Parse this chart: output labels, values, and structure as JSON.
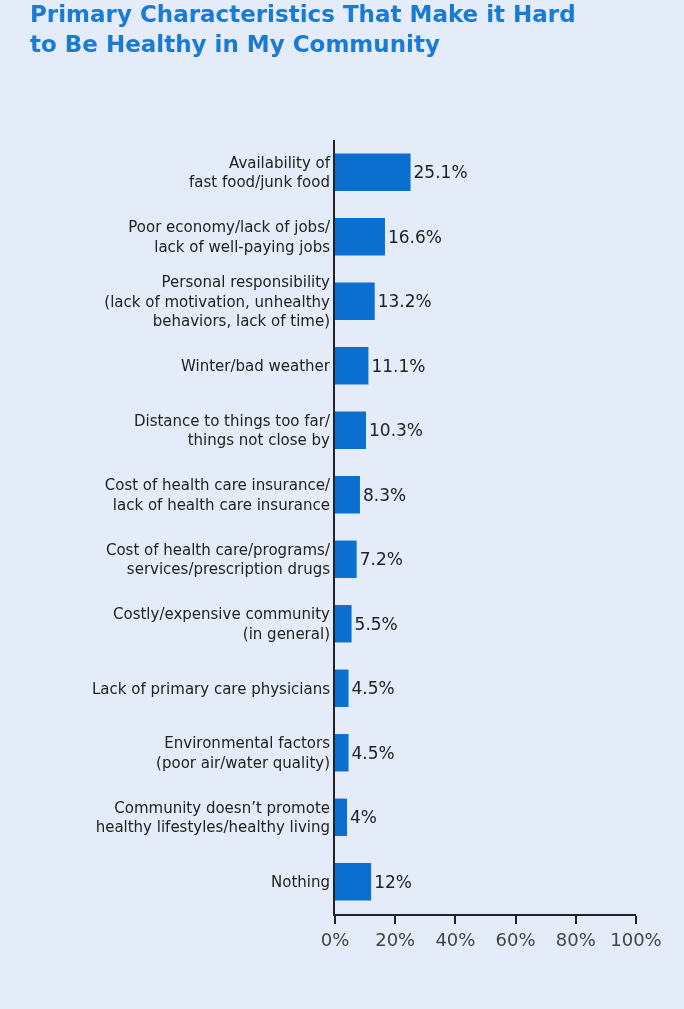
{
  "chart_data": {
    "type": "bar",
    "orientation": "horizontal",
    "title": "Primary Characteristics That Make it Hard\nto Be Healthy in My Community",
    "categories": [
      "Availability of\nfast food/junk food",
      "Poor economy/lack of jobs/\nlack of well-paying jobs",
      "Personal responsibility\n(lack of motivation, unhealthy\nbehaviors, lack of time)",
      "Winter/bad weather",
      "Distance to things too far/\nthings not close by",
      "Cost of health care insurance/\nlack of health care insurance",
      "Cost of health care/programs/\nservices/prescription drugs",
      "Costly/expensive community\n(in general)",
      "Lack of primary care physicians",
      "Environmental factors\n(poor air/water quality)",
      "Community doesn’t promote\nhealthy lifestyles/healthy living",
      "Nothing"
    ],
    "values": [
      25.1,
      16.6,
      13.2,
      11.1,
      10.3,
      8.3,
      7.2,
      5.5,
      4.5,
      4.5,
      4,
      12
    ],
    "value_labels": [
      "25.1%",
      "16.6%",
      "13.2%",
      "11.1%",
      "10.3%",
      "8.3%",
      "7.2%",
      "5.5%",
      "4.5%",
      "4.5%",
      "4%",
      "12%"
    ],
    "color": "#0b6fd0",
    "xlim": [
      0,
      100
    ],
    "xticks": [
      {
        "value": 0,
        "label": "0%"
      },
      {
        "value": 20,
        "label": "20%"
      },
      {
        "value": 40,
        "label": "40%"
      },
      {
        "value": 60,
        "label": "60%"
      },
      {
        "value": 80,
        "label": "80%"
      },
      {
        "value": 100,
        "label": "100%"
      }
    ],
    "grid": false,
    "legend": false
  }
}
